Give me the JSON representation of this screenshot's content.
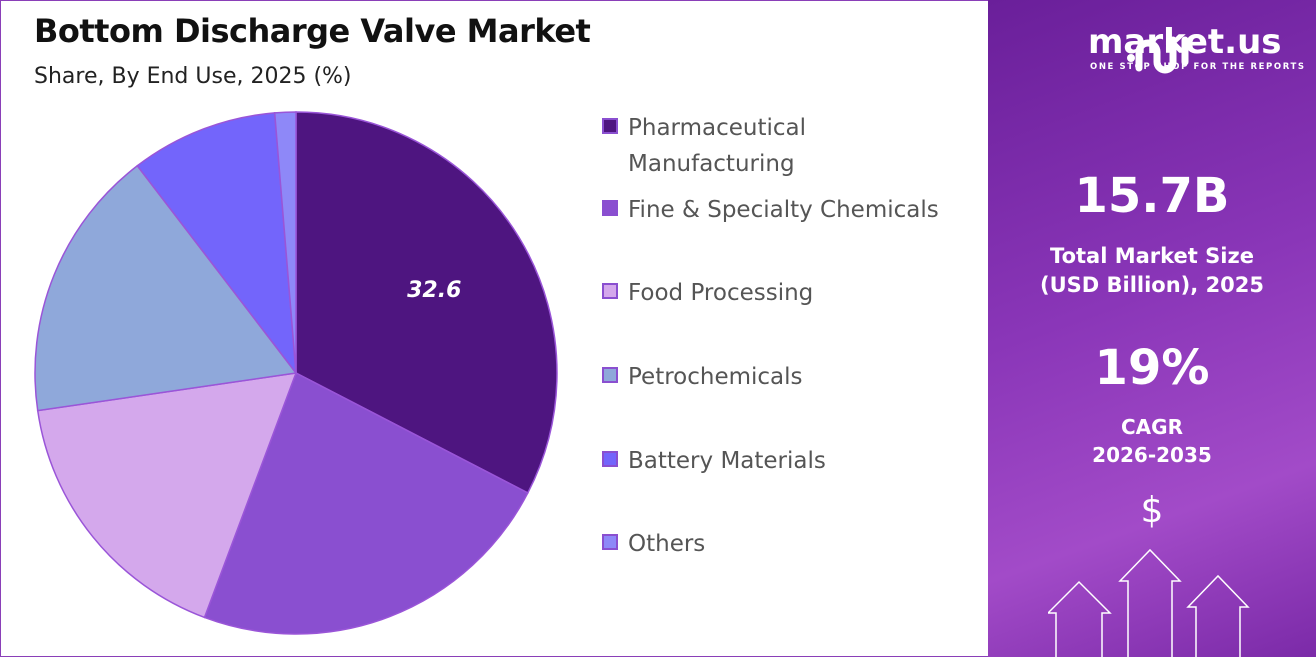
{
  "chart_data": {
    "type": "pie",
    "title": "Bottom Discharge Valve Market",
    "subtitle": "Share, By End Use, 2025 (%)",
    "categories": [
      "Pharmaceutical Manufacturing",
      "Fine & Specialty Chemicals",
      "Food Processing",
      "Petrochemicals",
      "Battery Materials",
      "Others"
    ],
    "values": [
      32.6,
      23.1,
      17.0,
      16.9,
      9.1,
      1.3
    ],
    "colors": [
      "#4e1580",
      "#8a4fd0",
      "#d4a8ec",
      "#8fa8da",
      "#7365fb",
      "#8e88f8"
    ],
    "data_labels": [
      "32.6",
      "",
      "",
      "",
      "",
      ""
    ],
    "legend_position": "right",
    "start_angle": "top, clockwise"
  },
  "legend_lines": [
    [
      "Pharmaceutical",
      "Manufacturing"
    ],
    [
      "Fine & Specialty Chemicals"
    ],
    [
      "Food Processing"
    ],
    [
      "Petrochemicals"
    ],
    [
      "Battery Materials"
    ],
    [
      "Others"
    ]
  ],
  "panel": {
    "brand": "market.us",
    "tagline": "ONE STOP SHOP FOR THE REPORTS",
    "market_size": "15.7B",
    "market_size_label_1": "Total Market Size",
    "market_size_label_2": "(USD Billion), 2025",
    "cagr": "19%",
    "cagr_label_1": "CAGR",
    "cagr_label_2": "2026-2035",
    "dollar": "$"
  }
}
